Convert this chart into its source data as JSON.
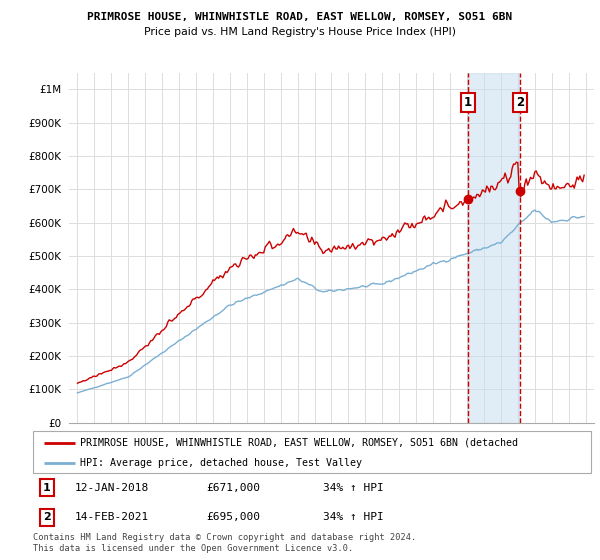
{
  "title": "PRIMROSE HOUSE, WHINWHISTLE ROAD, EAST WELLOW, ROMSEY, SO51 6BN",
  "subtitle": "Price paid vs. HM Land Registry's House Price Index (HPI)",
  "legend_line1": "PRIMROSE HOUSE, WHINWHISTLE ROAD, EAST WELLOW, ROMSEY, SO51 6BN (detached",
  "legend_line2": "HPI: Average price, detached house, Test Valley",
  "footer": "Contains HM Land Registry data © Crown copyright and database right 2024.\nThis data is licensed under the Open Government Licence v3.0.",
  "annotation1_label": "1",
  "annotation1_date": "12-JAN-2018",
  "annotation1_price": "£671,000",
  "annotation1_hpi": "34% ↑ HPI",
  "annotation2_label": "2",
  "annotation2_date": "14-FEB-2021",
  "annotation2_price": "£695,000",
  "annotation2_hpi": "34% ↑ HPI",
  "ylim": [
    0,
    1050000
  ],
  "yticks": [
    0,
    100000,
    200000,
    300000,
    400000,
    500000,
    600000,
    700000,
    800000,
    900000,
    1000000
  ],
  "ytick_labels": [
    "£0",
    "£100K",
    "£200K",
    "£300K",
    "£400K",
    "£500K",
    "£600K",
    "£700K",
    "£800K",
    "£900K",
    "£1M"
  ],
  "red_color": "#cc0000",
  "blue_color": "#7bafd4",
  "shade_color": "#c8dff0",
  "background_color": "#ffffff",
  "grid_color": "#dddddd",
  "purchase1_year": 2018.04,
  "purchase1_value": 671000,
  "purchase2_year": 2021.12,
  "purchase2_value": 695000,
  "xmin": 1994.5,
  "xmax": 2025.5
}
